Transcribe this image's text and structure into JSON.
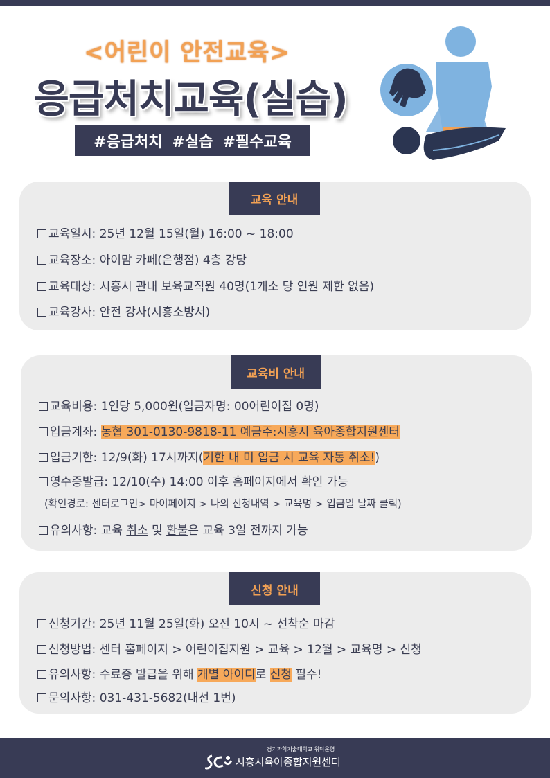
{
  "header": {
    "subtitle": "<어린이 안전교육>",
    "title": "응급처치교육(실습)",
    "tags": [
      "#응급처치",
      "#실습",
      "#필수교육"
    ]
  },
  "section1": {
    "heading": "교육 안내",
    "rows": [
      "교육일시: 25년 12월 15일(월) 16:00 ~ 18:00",
      "교육장소: 아이맘 카페(은행점) 4층 강당",
      "교육대상: 시흥시 관내 보육교직원 40명(1개소 당 인원 제한 없음)",
      "교육강사: 안전 강사(시흥소방서)"
    ]
  },
  "section2": {
    "heading": "교육비 안내",
    "cost": "교육비용: 1인당 5,000원(입금자명: 00어린이집 0명)",
    "account_label": "입금계좌: ",
    "account_value": "농협 301-0130-9818-11 예금주:시흥시 육아종합지원센터",
    "deadline_label": "입금기한: 12/9(화) 17시까지(",
    "deadline_warning": "기한 내 미 입금 시 교육 자동 취소!",
    "deadline_close": ")",
    "receipt": "영수증발급: 12/10(수) 14:00 이후 홈페이지에서 확인 가능",
    "receipt_path": "(확인경로: 센터로그인> 마이페이지 > 나의 신청내역 > 교육명 > 입금일 날짜 클릭)",
    "note_parts": [
      "유의사항: 교육 ",
      "취소",
      " 및 ",
      "환불",
      "은 교육 3일 전까지 가능"
    ]
  },
  "section3": {
    "heading": "신청 안내",
    "period": "신청기간: 25년 11월 25일(화) 오전 10시 ~ 선착순 마감",
    "method": "신청방법: 센터 홈페이지 > 어린이집지원 > 교육 > 12월 > 교육명 > 신청",
    "note_parts": [
      "유의사항: 수료증 발급을 위해 ",
      "개별 아이디",
      "로 ",
      "신청",
      " 필수!"
    ],
    "contact": "문의사항: 031-431-5682(내선 1번)"
  },
  "footer": {
    "operator": "경기과학기술대학교 위탁운영",
    "org": "시흥시육아종합지원센터",
    "logo_text": "SCI"
  },
  "colors": {
    "navy": "#383b55",
    "orange": "#f2a154",
    "highlight": "#f7a95a",
    "panel": "#ececec",
    "illustration_blue": "#7fb3e0"
  }
}
